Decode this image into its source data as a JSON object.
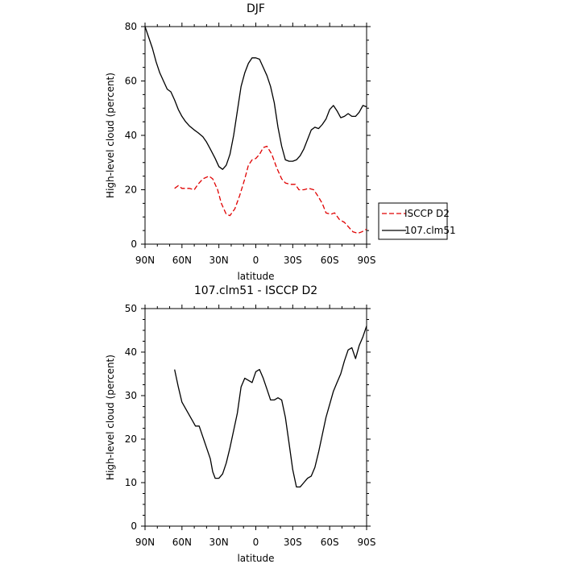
{
  "chart_data": [
    {
      "type": "line",
      "title": "DJF",
      "xlabel": "latitude",
      "ylabel": "High-level cloud (percent)",
      "xlim": [
        90,
        -90
      ],
      "ylim": [
        0,
        80
      ],
      "x_ticks": [
        90,
        60,
        30,
        0,
        -30,
        -60,
        -90
      ],
      "x_tick_labels": [
        "90N",
        "60N",
        "30N",
        "0",
        "30S",
        "60S",
        "90S"
      ],
      "y_ticks": [
        0,
        20,
        40,
        60,
        80
      ],
      "y_tick_labels": [
        "0",
        "20",
        "40",
        "60",
        "80"
      ],
      "legend_position": "right",
      "series": [
        {
          "name": "ISCCP D2",
          "color": "#e00000",
          "dash": "dashed",
          "x": [
            66,
            63,
            60,
            57,
            54,
            50,
            47,
            43,
            38,
            35,
            31,
            28,
            24,
            21,
            17,
            13,
            9,
            6,
            3,
            0,
            -3,
            -6,
            -9,
            -13,
            -17,
            -21,
            -24,
            -28,
            -32,
            -35,
            -39,
            -43,
            -47,
            -50,
            -54,
            -57,
            -61,
            -64,
            -68,
            -72,
            -76,
            -79,
            -83,
            -86,
            -90
          ],
          "y": [
            20.5,
            21.5,
            20.5,
            20.5,
            20.5,
            20,
            22,
            24,
            25,
            24,
            20,
            15,
            11,
            10.5,
            13,
            18,
            24,
            29,
            31,
            31.5,
            33,
            35.5,
            36,
            33,
            28,
            24,
            22.5,
            22,
            22,
            20,
            20,
            20.5,
            20,
            18,
            15,
            11.5,
            11,
            11.5,
            9,
            8,
            6,
            4.5,
            4,
            4.5,
            5.5
          ]
        },
        {
          "name": "107.clm51",
          "color": "#000000",
          "dash": "solid",
          "x": [
            90,
            87,
            84,
            81,
            78,
            75,
            72,
            69,
            66,
            63,
            60,
            57,
            54,
            50,
            47,
            43,
            40,
            37,
            33,
            30,
            27,
            24,
            21,
            18,
            15,
            12,
            9,
            6,
            3,
            0,
            -3,
            -6,
            -9,
            -12,
            -15,
            -18,
            -21,
            -24,
            -27,
            -30,
            -33,
            -36,
            -39,
            -42,
            -45,
            -48,
            -51,
            -54,
            -57,
            -60,
            -63,
            -66,
            -69,
            -72,
            -75,
            -78,
            -81,
            -84,
            -87,
            -90
          ],
          "y": [
            80,
            76,
            72,
            67,
            63,
            60,
            57,
            56,
            53,
            49.5,
            47,
            45,
            43.5,
            42,
            41,
            39.5,
            37.5,
            35,
            31.5,
            28.5,
            27.5,
            29,
            33,
            40,
            49,
            58,
            63,
            66.5,
            68.5,
            68.5,
            68,
            65,
            62,
            58,
            52,
            43,
            36,
            31,
            30.5,
            30.5,
            31,
            32.5,
            35,
            38.5,
            42,
            43,
            42.5,
            44,
            46,
            49.5,
            51,
            49,
            46.5,
            47,
            48,
            47,
            47,
            48.5,
            51,
            50.5
          ]
        }
      ]
    },
    {
      "type": "line",
      "title": "107.clm51 - ISCCP D2",
      "xlabel": "latitude",
      "ylabel": "High-level cloud (percent)",
      "xlim": [
        90,
        -90
      ],
      "ylim": [
        0,
        50
      ],
      "x_ticks": [
        90,
        60,
        30,
        0,
        -30,
        -60,
        -90
      ],
      "x_tick_labels": [
        "90N",
        "60N",
        "30N",
        "0",
        "30S",
        "60S",
        "90S"
      ],
      "y_ticks": [
        0,
        10,
        20,
        30,
        40,
        50
      ],
      "y_tick_labels": [
        "0",
        "10",
        "20",
        "30",
        "40",
        "50"
      ],
      "series": [
        {
          "color": "#000000",
          "dash": "solid",
          "x": [
            66,
            63,
            60,
            57,
            54,
            51,
            49,
            46,
            43,
            40,
            37,
            35,
            33,
            30,
            27,
            24,
            21,
            18,
            15,
            12,
            9,
            6,
            3,
            0,
            -3,
            -6,
            -9,
            -12,
            -15,
            -18,
            -21,
            -24,
            -27,
            -30,
            -33,
            -36,
            -39,
            -42,
            -45,
            -48,
            -51,
            -54,
            -57,
            -60,
            -63,
            -66,
            -69,
            -72,
            -75,
            -78,
            -81,
            -84,
            -87,
            -90
          ],
          "y": [
            36,
            32,
            28.5,
            27,
            25.5,
            24,
            23,
            23,
            20.5,
            18,
            15.5,
            12.5,
            11,
            11,
            12,
            14.5,
            18,
            22,
            26,
            32,
            34,
            33.5,
            33,
            35.5,
            36,
            34,
            31.5,
            29,
            29,
            29.5,
            29,
            25,
            19,
            13,
            9,
            9,
            10,
            11,
            11.5,
            13.5,
            17,
            21,
            25,
            28,
            31,
            33,
            35,
            38,
            40.5,
            41,
            38.5,
            41.5,
            43.5,
            46
          ]
        }
      ]
    }
  ]
}
